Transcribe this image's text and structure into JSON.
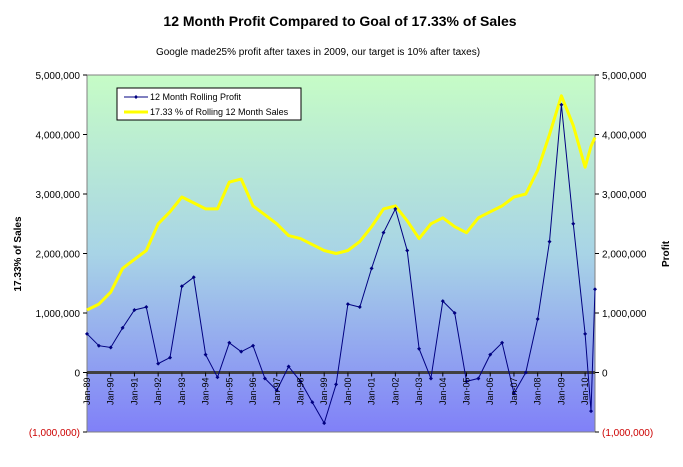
{
  "chart_data": {
    "type": "line",
    "title": "12 Month Profit Compared to Goal of 17.33% of  Sales",
    "subtitle": "Google made25% profit after taxes in 2009, our target is 10% after taxes)",
    "ylabel_left": "17.33% of Sales",
    "ylabel_right": "Profit",
    "ylim": [
      -1000000,
      5000000
    ],
    "y_ticks": [
      -1000000,
      0,
      1000000,
      2000000,
      3000000,
      4000000,
      5000000
    ],
    "y_tick_labels": [
      "(1,000,000)",
      "0",
      "1,000,000",
      "2,000,000",
      "3,000,000",
      "4,000,000",
      "5,000,000"
    ],
    "x_tick_labels": [
      "Jan-89",
      "Jan-90",
      "Jan-91",
      "Jan-92",
      "Jan-93",
      "Jan-94",
      "Jan-95",
      "Jan-96",
      "Jan-97",
      "Jan-98",
      "Jan-99",
      "Jan-00",
      "Jan-01",
      "Jan-02",
      "Jan-03",
      "Jan-04",
      "Jan-05",
      "Jan-06",
      "Jan-07",
      "Jan-08",
      "Jan-09",
      "Jan-10"
    ],
    "x_range": [
      "Jan-89",
      "Jun-10"
    ],
    "legend_position": "top-left",
    "series": [
      {
        "name": "12 Month Rolling Profit",
        "color": "#000080",
        "marker": "diamond",
        "points": [
          [
            "Jan-89",
            650000
          ],
          [
            "Jul-89",
            450000
          ],
          [
            "Jan-90",
            420000
          ],
          [
            "Jul-90",
            750000
          ],
          [
            "Jan-91",
            1050000
          ],
          [
            "Jul-91",
            1100000
          ],
          [
            "Jan-92",
            150000
          ],
          [
            "Jul-92",
            250000
          ],
          [
            "Jan-93",
            1450000
          ],
          [
            "Jul-93",
            1600000
          ],
          [
            "Jan-94",
            300000
          ],
          [
            "Jul-94",
            -80000
          ],
          [
            "Jan-95",
            500000
          ],
          [
            "Jul-95",
            350000
          ],
          [
            "Jan-96",
            450000
          ],
          [
            "Jul-96",
            -100000
          ],
          [
            "Jan-97",
            -300000
          ],
          [
            "Jul-97",
            100000
          ],
          [
            "Jan-98",
            -150000
          ],
          [
            "Jul-98",
            -500000
          ],
          [
            "Jan-99",
            -850000
          ],
          [
            "Jul-99",
            -200000
          ],
          [
            "Jan-00",
            1150000
          ],
          [
            "Jul-00",
            1100000
          ],
          [
            "Jan-01",
            1750000
          ],
          [
            "Jul-01",
            2350000
          ],
          [
            "Jan-02",
            2750000
          ],
          [
            "Jul-02",
            2050000
          ],
          [
            "Jan-03",
            400000
          ],
          [
            "Jul-03",
            -100000
          ],
          [
            "Jan-04",
            1200000
          ],
          [
            "Jul-04",
            1000000
          ],
          [
            "Jan-05",
            -150000
          ],
          [
            "Jul-05",
            -100000
          ],
          [
            "Jan-06",
            300000
          ],
          [
            "Jul-06",
            500000
          ],
          [
            "Jan-07",
            -350000
          ],
          [
            "Jul-07",
            0
          ],
          [
            "Jan-08",
            900000
          ],
          [
            "Jul-08",
            2200000
          ],
          [
            "Jan-09",
            4500000
          ],
          [
            "Jul-09",
            2500000
          ],
          [
            "Jan-10",
            650000
          ],
          [
            "Apr-10",
            -650000
          ],
          [
            "Jun-10",
            1400000
          ]
        ]
      },
      {
        "name": "17.33 % of Rolling 12 Month Sales",
        "color": "#ffff00",
        "points": [
          [
            "Jan-89",
            1050000
          ],
          [
            "Jul-89",
            1150000
          ],
          [
            "Jan-90",
            1350000
          ],
          [
            "Jul-90",
            1750000
          ],
          [
            "Jan-91",
            1900000
          ],
          [
            "Jul-91",
            2050000
          ],
          [
            "Jan-92",
            2500000
          ],
          [
            "Jul-92",
            2700000
          ],
          [
            "Jan-93",
            2950000
          ],
          [
            "Jul-93",
            2850000
          ],
          [
            "Jan-94",
            2750000
          ],
          [
            "Jul-94",
            2750000
          ],
          [
            "Jan-95",
            3200000
          ],
          [
            "Jul-95",
            3250000
          ],
          [
            "Jan-96",
            2800000
          ],
          [
            "Jul-96",
            2650000
          ],
          [
            "Jan-97",
            2500000
          ],
          [
            "Jul-97",
            2300000
          ],
          [
            "Jan-98",
            2250000
          ],
          [
            "Jul-98",
            2150000
          ],
          [
            "Jan-99",
            2050000
          ],
          [
            "Jul-99",
            2000000
          ],
          [
            "Jan-00",
            2050000
          ],
          [
            "Jul-00",
            2200000
          ],
          [
            "Jan-01",
            2450000
          ],
          [
            "Jul-01",
            2750000
          ],
          [
            "Jan-02",
            2800000
          ],
          [
            "Jul-02",
            2550000
          ],
          [
            "Jan-03",
            2250000
          ],
          [
            "Jul-03",
            2500000
          ],
          [
            "Jan-04",
            2600000
          ],
          [
            "Jul-04",
            2450000
          ],
          [
            "Jan-05",
            2350000
          ],
          [
            "Jul-05",
            2600000
          ],
          [
            "Jan-06",
            2700000
          ],
          [
            "Jul-06",
            2800000
          ],
          [
            "Jan-07",
            2950000
          ],
          [
            "Jul-07",
            3000000
          ],
          [
            "Jan-08",
            3400000
          ],
          [
            "Jul-08",
            4000000
          ],
          [
            "Jan-09",
            4650000
          ],
          [
            "Jul-09",
            4150000
          ],
          [
            "Jan-10",
            3450000
          ],
          [
            "Apr-10",
            3800000
          ],
          [
            "Jun-10",
            3950000
          ]
        ]
      }
    ]
  }
}
